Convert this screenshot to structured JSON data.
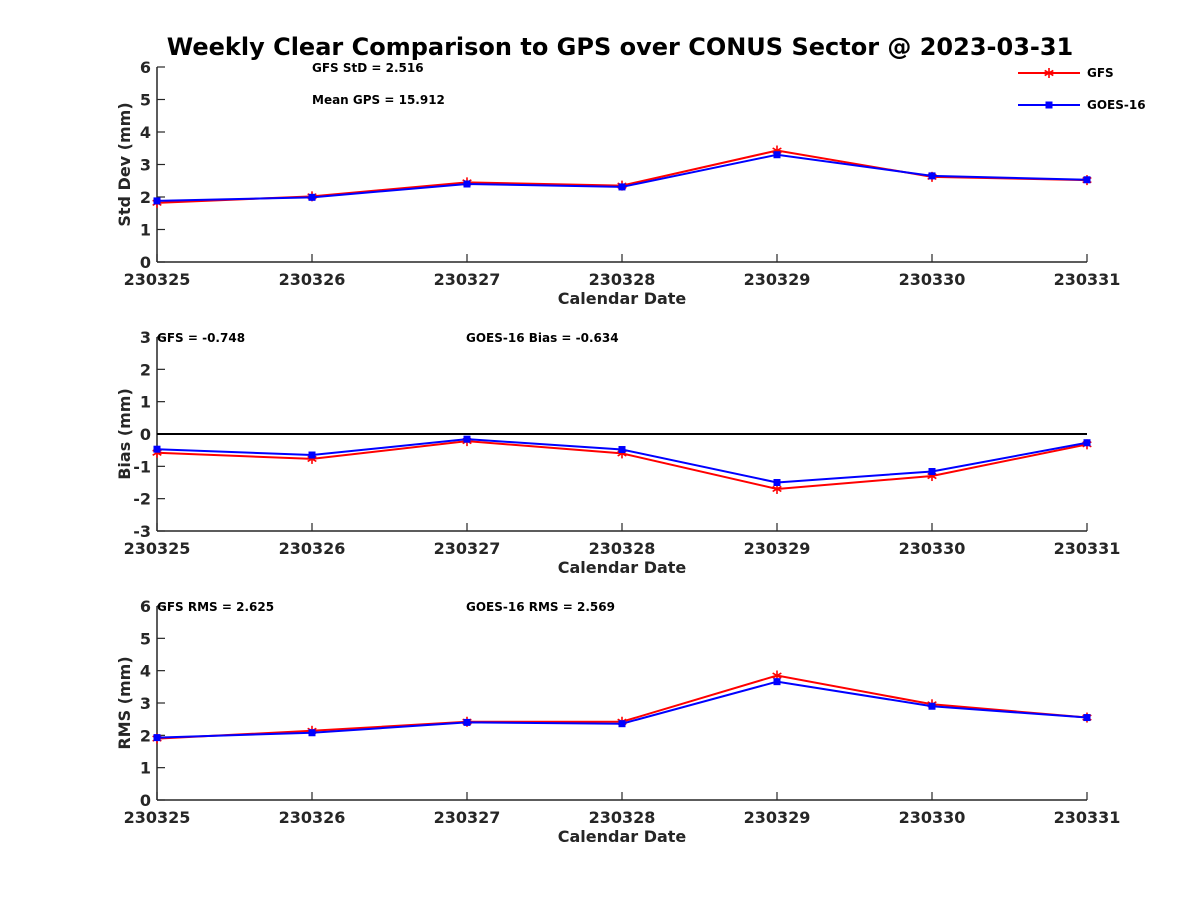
{
  "title": "Weekly Clear Comparison to GPS over CONUS Sector @ 2023-03-31",
  "legend": [
    {
      "name": "GFS",
      "color": "#ff0000",
      "marker": "asterisk"
    },
    {
      "name": "GOES-16",
      "color": "#0000ff",
      "marker": "square"
    }
  ],
  "chart_data": [
    {
      "type": "line",
      "categories": [
        "230325",
        "230326",
        "230327",
        "230328",
        "230329",
        "230330",
        "230331"
      ],
      "xlabel": "Calendar Date",
      "ylabel": "Std Dev (mm)",
      "ylim": [
        0,
        6
      ],
      "yticks": [
        "0",
        "1",
        "2",
        "3",
        "4",
        "5",
        "6"
      ],
      "legend_position": "top-right",
      "grid": false,
      "annotations": [
        "GFS StD = 2.516",
        "Mean GPS = 15.912"
      ],
      "series": [
        {
          "name": "GFS",
          "color": "#ff0000",
          "values": [
            1.82,
            2.02,
            2.45,
            2.35,
            3.43,
            2.62,
            2.52
          ]
        },
        {
          "name": "GOES-16",
          "color": "#0000ff",
          "values": [
            1.88,
            1.99,
            2.4,
            2.31,
            3.3,
            2.65,
            2.53
          ]
        }
      ]
    },
    {
      "type": "line",
      "categories": [
        "230325",
        "230326",
        "230327",
        "230328",
        "230329",
        "230330",
        "230331"
      ],
      "xlabel": "Calendar Date",
      "ylabel": "Bias (mm)",
      "ylim": [
        -3,
        3
      ],
      "yticks": [
        "-3",
        "-2",
        "-1",
        "0",
        "1",
        "2",
        "3"
      ],
      "zero_line": true,
      "grid": false,
      "annotations": [
        "GFS = -0.748",
        "GOES-16 Bias  = -0.634"
      ],
      "series": [
        {
          "name": "GFS",
          "color": "#ff0000",
          "values": [
            -0.58,
            -0.77,
            -0.22,
            -0.6,
            -1.7,
            -1.3,
            -0.32
          ]
        },
        {
          "name": "GOES-16",
          "color": "#0000ff",
          "values": [
            -0.47,
            -0.65,
            -0.16,
            -0.48,
            -1.5,
            -1.16,
            -0.27
          ]
        }
      ]
    },
    {
      "type": "line",
      "categories": [
        "230325",
        "230326",
        "230327",
        "230328",
        "230329",
        "230330",
        "230331"
      ],
      "xlabel": "Calendar Date",
      "ylabel": "RMS (mm)",
      "ylim": [
        0,
        6
      ],
      "yticks": [
        "0",
        "1",
        "2",
        "3",
        "4",
        "5",
        "6"
      ],
      "grid": false,
      "annotations": [
        "GFS RMS = 2.625",
        "GOES-16 RMS = 2.569"
      ],
      "series": [
        {
          "name": "GFS",
          "color": "#ff0000",
          "values": [
            1.9,
            2.14,
            2.42,
            2.42,
            3.85,
            2.96,
            2.55
          ]
        },
        {
          "name": "GOES-16",
          "color": "#0000ff",
          "values": [
            1.93,
            2.08,
            2.4,
            2.36,
            3.66,
            2.9,
            2.55
          ]
        }
      ]
    }
  ]
}
